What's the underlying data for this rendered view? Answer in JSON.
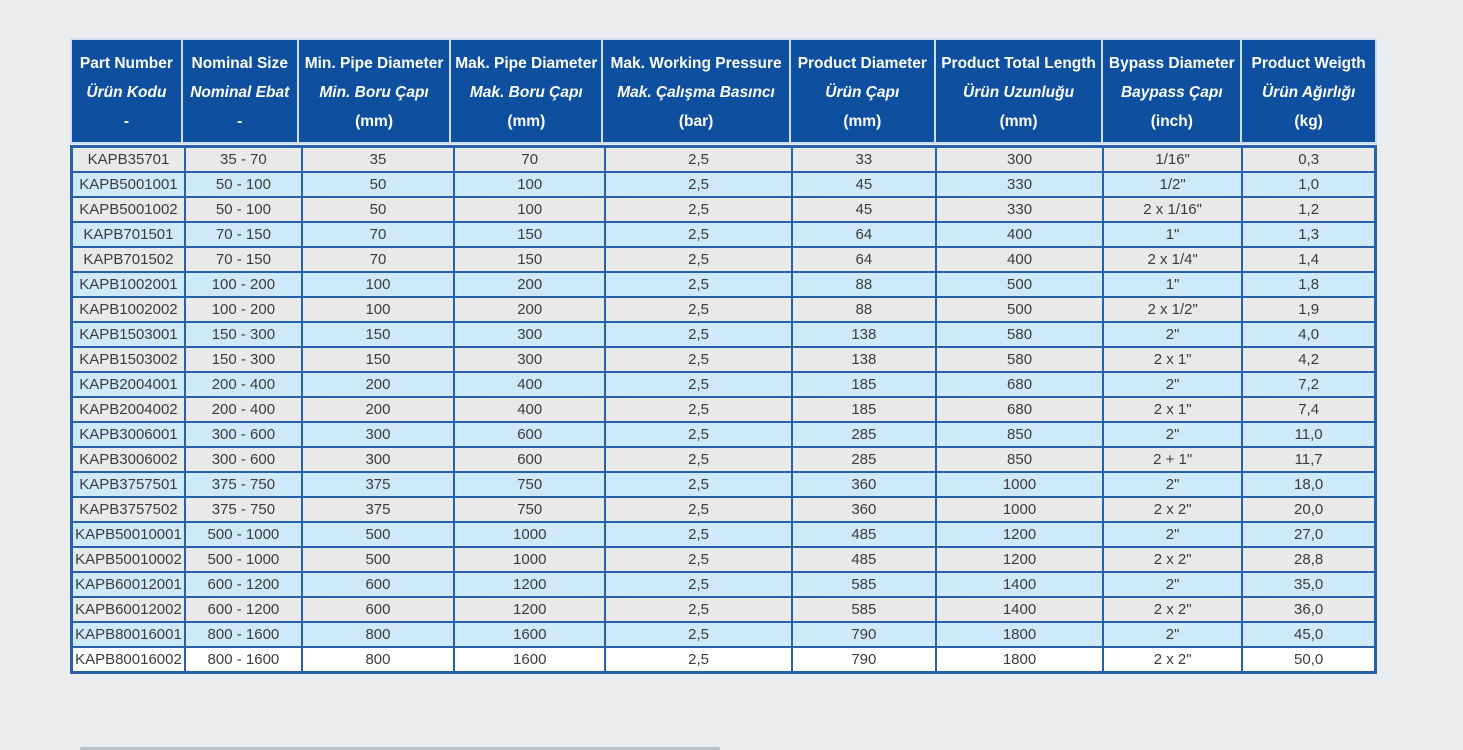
{
  "colors": {
    "page_background": "#ebecee",
    "header_background": "#0e509f",
    "header_text": "#ffffff",
    "header_separator": "#cde0f3",
    "grid_line": "#2760ab",
    "row_gray": "#e9e9e9",
    "row_blue": "#cde9fa",
    "row_white": "#ffffff",
    "cell_text": "#3c3c3c"
  },
  "chart_data": {
    "type": "table",
    "title": "",
    "columns": [
      {
        "en": "Part Number",
        "tr": "Ürün Kodu",
        "unit": "-"
      },
      {
        "en": "Nominal Size",
        "tr": "Nominal Ebat",
        "unit": "-"
      },
      {
        "en": "Min. Pipe Diameter",
        "tr": "Min. Boru Çapı",
        "unit": "(mm)"
      },
      {
        "en": "Mak. Pipe Diameter",
        "tr": "Mak. Boru Çapı",
        "unit": "(mm)"
      },
      {
        "en": "Mak. Working Pressure",
        "tr": "Mak. Çalışma Basıncı",
        "unit": "(bar)"
      },
      {
        "en": "Product Diameter",
        "tr": "Ürün Çapı",
        "unit": "(mm)"
      },
      {
        "en": "Product Total Length",
        "tr": "Ürün Uzunluğu",
        "unit": "(mm)"
      },
      {
        "en": "Bypass Diameter",
        "tr": "Baypass Çapı",
        "unit": "(inch)"
      },
      {
        "en": "Product Weigth",
        "tr": "Ürün Ağırlığı",
        "unit": "(kg)"
      }
    ],
    "rows": [
      [
        "KAPB35701",
        "35 - 70",
        "35",
        "70",
        "2,5",
        "33",
        "300",
        "1/16\"",
        "0,3"
      ],
      [
        "KAPB5001001",
        "50 - 100",
        "50",
        "100",
        "2,5",
        "45",
        "330",
        "1/2\"",
        "1,0"
      ],
      [
        "KAPB5001002",
        "50 - 100",
        "50",
        "100",
        "2,5",
        "45",
        "330",
        "2 x 1/16\"",
        "1,2"
      ],
      [
        "KAPB701501",
        "70 - 150",
        "70",
        "150",
        "2,5",
        "64",
        "400",
        "1\"",
        "1,3"
      ],
      [
        "KAPB701502",
        "70 - 150",
        "70",
        "150",
        "2,5",
        "64",
        "400",
        "2 x 1/4\"",
        "1,4"
      ],
      [
        "KAPB1002001",
        "100 - 200",
        "100",
        "200",
        "2,5",
        "88",
        "500",
        "1\"",
        "1,8"
      ],
      [
        "KAPB1002002",
        "100 - 200",
        "100",
        "200",
        "2,5",
        "88",
        "500",
        "2 x 1/2\"",
        "1,9"
      ],
      [
        "KAPB1503001",
        "150 - 300",
        "150",
        "300",
        "2,5",
        "138",
        "580",
        "2\"",
        "4,0"
      ],
      [
        "KAPB1503002",
        "150 - 300",
        "150",
        "300",
        "2,5",
        "138",
        "580",
        "2 x 1\"",
        "4,2"
      ],
      [
        "KAPB2004001",
        "200 - 400",
        "200",
        "400",
        "2,5",
        "185",
        "680",
        "2\"",
        "7,2"
      ],
      [
        "KAPB2004002",
        "200 - 400",
        "200",
        "400",
        "2,5",
        "185",
        "680",
        "2 x 1\"",
        "7,4"
      ],
      [
        "KAPB3006001",
        "300 - 600",
        "300",
        "600",
        "2,5",
        "285",
        "850",
        "2\"",
        "11,0"
      ],
      [
        "KAPB3006002",
        "300 - 600",
        "300",
        "600",
        "2,5",
        "285",
        "850",
        "2 + 1\"",
        "11,7"
      ],
      [
        "KAPB3757501",
        "375 - 750",
        "375",
        "750",
        "2,5",
        "360",
        "1000",
        "2\"",
        "18,0"
      ],
      [
        "KAPB3757502",
        "375 - 750",
        "375",
        "750",
        "2,5",
        "360",
        "1000",
        "2 x 2\"",
        "20,0"
      ],
      [
        "KAPB50010001",
        "500 - 1000",
        "500",
        "1000",
        "2,5",
        "485",
        "1200",
        "2\"",
        "27,0"
      ],
      [
        "KAPB50010002",
        "500 - 1000",
        "500",
        "1000",
        "2,5",
        "485",
        "1200",
        "2 x 2\"",
        "28,8"
      ],
      [
        "KAPB60012001",
        "600 - 1200",
        "600",
        "1200",
        "2,5",
        "585",
        "1400",
        "2\"",
        "35,0"
      ],
      [
        "KAPB60012002",
        "600 - 1200",
        "600",
        "1200",
        "2,5",
        "585",
        "1400",
        "2 x 2\"",
        "36,0"
      ],
      [
        "KAPB80016001",
        "800 - 1600",
        "800",
        "1600",
        "2,5",
        "790",
        "1800",
        "2\"",
        "45,0"
      ],
      [
        "KAPB80016002",
        "800 - 1600",
        "800",
        "1600",
        "2,5",
        "790",
        "1800",
        "2 x 2\"",
        "50,0"
      ]
    ]
  }
}
